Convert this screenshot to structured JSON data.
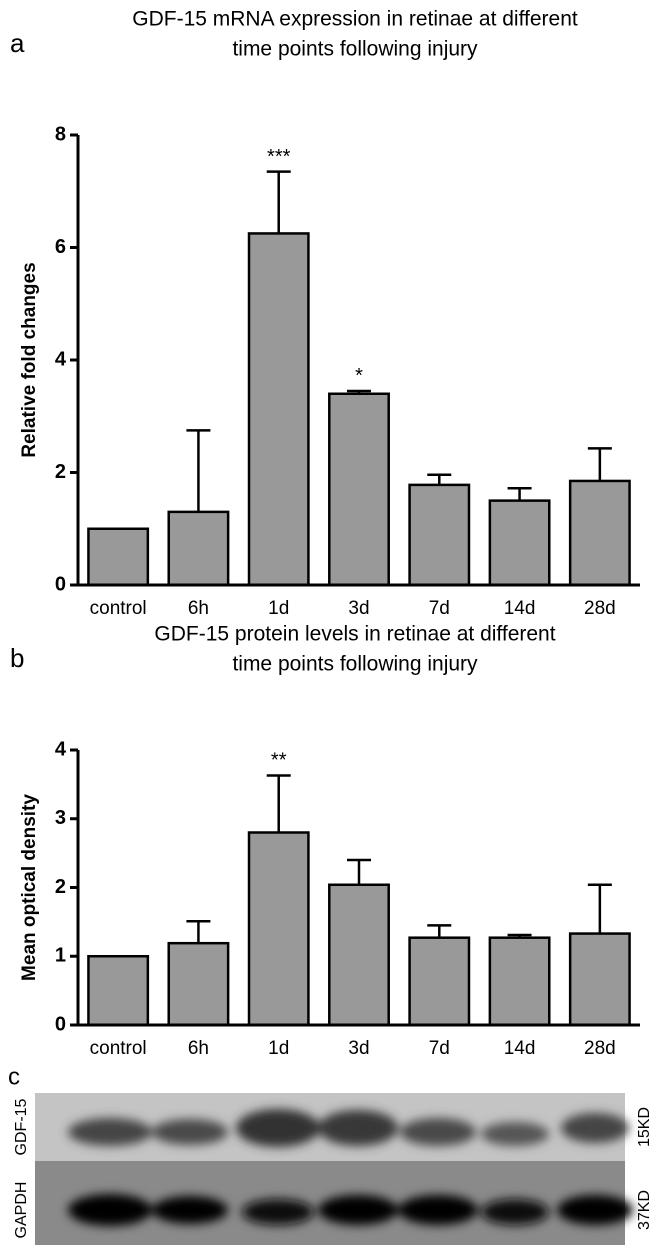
{
  "chart_data": [
    {
      "type": "bar",
      "panel": "a",
      "title": [
        "GDF-15 mRNA expression in retinae at different",
        "time points following injury"
      ],
      "y_label": "Relative fold changes",
      "categories": [
        "control",
        "6h",
        "1d",
        "3d",
        "7d",
        "14d",
        "28d"
      ],
      "values": [
        1,
        1.3,
        6.25,
        3.4,
        1.78,
        1.5,
        1.85
      ],
      "errors": [
        null,
        1.45,
        1.1,
        0.05,
        0.18,
        0.22,
        0.58
      ],
      "significance": [
        null,
        null,
        "***",
        "*",
        null,
        null,
        null
      ],
      "color": "#999999",
      "ylim": [
        0,
        8
      ],
      "yticks": [
        0,
        2,
        4,
        6,
        8
      ]
    },
    {
      "type": "bar",
      "panel": "b",
      "title": [
        "GDF-15 protein levels in retinae at different",
        "time points following injury"
      ],
      "y_label": "Mean optical density",
      "categories": [
        "control",
        "6h",
        "1d",
        "3d",
        "7d",
        "14d",
        "28d"
      ],
      "values": [
        1,
        1.19,
        2.8,
        2.04,
        1.27,
        1.27,
        1.33
      ],
      "errors": [
        null,
        0.32,
        0.83,
        0.36,
        0.18,
        0.04,
        0.71
      ],
      "significance": [
        null,
        null,
        "**",
        null,
        null,
        null,
        null
      ],
      "color": "#999999",
      "ylim": [
        0,
        4
      ],
      "yticks": [
        0,
        1,
        2,
        3,
        4
      ]
    }
  ],
  "panel_c": {
    "label": "c",
    "rows": [
      {
        "name": "GDF-15",
        "size": "15KD"
      },
      {
        "name": "GAPDH",
        "size": "37KD"
      }
    ]
  }
}
